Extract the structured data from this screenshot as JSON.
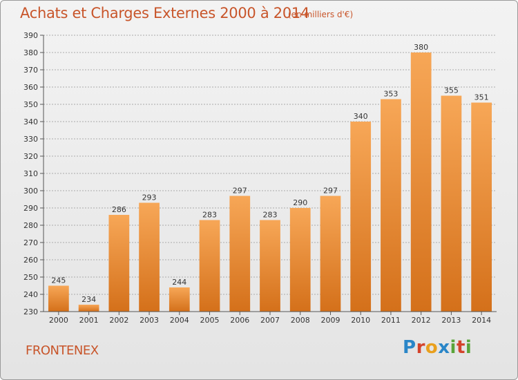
{
  "title": "Achats et Charges Externes 2000 à 2014",
  "subtitle": "(en milliers d'€)",
  "commune": "FRONTENEX",
  "logo_text": "Proxiti",
  "colors": {
    "title": "#c8552a",
    "bar_top": "#f7a757",
    "bar_bottom": "#d4701a",
    "grid": "#aaaaaa",
    "axis": "#555555"
  },
  "chart_data": {
    "type": "bar",
    "title": "Achats et Charges Externes 2000 à 2014",
    "subtitle": "(en milliers d'€)",
    "categories": [
      "2000",
      "2001",
      "2002",
      "2003",
      "2004",
      "2005",
      "2006",
      "2007",
      "2008",
      "2009",
      "2010",
      "2011",
      "2012",
      "2013",
      "2014"
    ],
    "values": [
      245,
      234,
      286,
      293,
      244,
      283,
      297,
      283,
      290,
      297,
      340,
      353,
      380,
      355,
      351
    ],
    "ylim": [
      230,
      390
    ],
    "yticks": [
      230,
      240,
      250,
      260,
      270,
      280,
      290,
      300,
      310,
      320,
      330,
      340,
      350,
      360,
      370,
      380,
      390
    ],
    "grid": true,
    "data_labels": true,
    "legend": "none"
  }
}
